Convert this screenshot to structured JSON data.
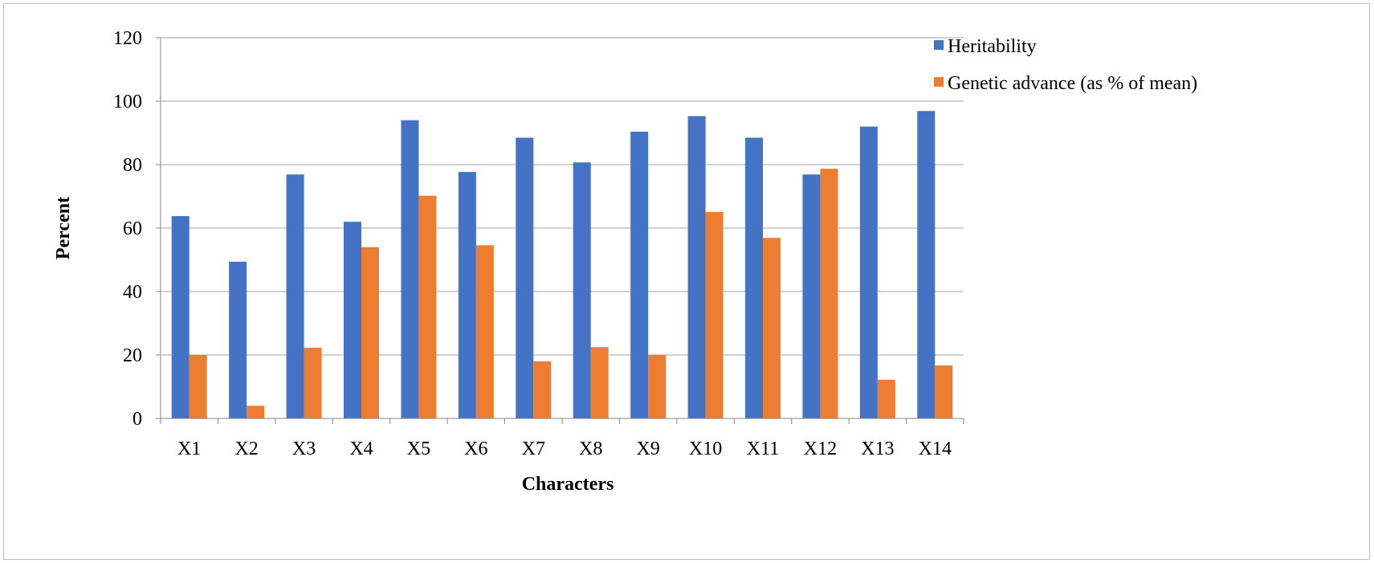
{
  "chart_data": {
    "type": "bar",
    "title": "",
    "xlabel": "Characters",
    "ylabel": "Percent",
    "ylim": [
      0,
      120
    ],
    "yticks": [
      0,
      20,
      40,
      60,
      80,
      100,
      120
    ],
    "grid": true,
    "legend_position": "top-right",
    "categories": [
      "X1",
      "X2",
      "X3",
      "X4",
      "X5",
      "X6",
      "X7",
      "X8",
      "X9",
      "X10",
      "X11",
      "X12",
      "X13",
      "X14"
    ],
    "series": [
      {
        "name": "Heritability",
        "color": "#4472c4",
        "values": [
          63.8,
          49.4,
          76.9,
          62.0,
          94.0,
          77.7,
          88.5,
          80.7,
          90.4,
          95.3,
          88.5,
          76.9,
          92.0,
          96.9
        ]
      },
      {
        "name": "Genetic advance (as % of mean)",
        "color": "#ed7d31",
        "values": [
          20.0,
          4.0,
          22.3,
          54.0,
          70.2,
          54.6,
          18.0,
          22.5,
          20.0,
          65.1,
          56.9,
          78.7,
          12.2,
          16.7
        ]
      }
    ]
  }
}
